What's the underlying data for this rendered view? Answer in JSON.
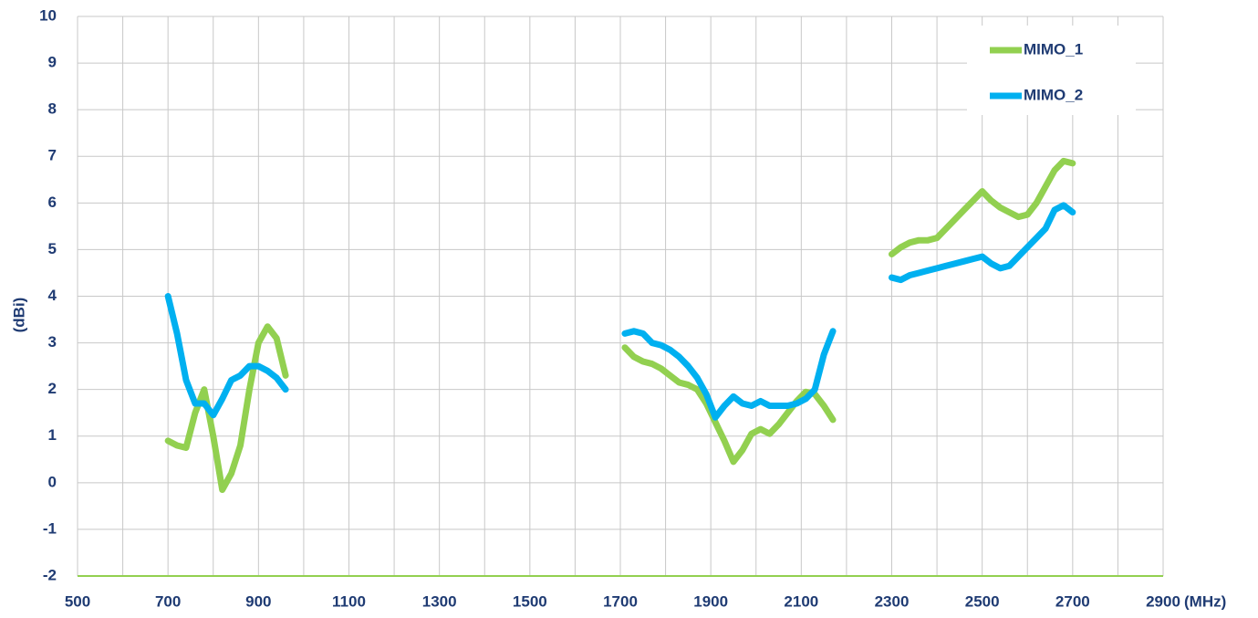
{
  "chart_data": {
    "type": "line",
    "x_label": "(MHz)",
    "y_label": "(dBi)",
    "x": [
      700,
      720,
      740,
      760,
      780,
      800,
      820,
      840,
      860,
      880,
      900,
      920,
      940,
      960,
      null,
      1710,
      1730,
      1750,
      1770,
      1790,
      1810,
      1830,
      1850,
      1870,
      1890,
      1910,
      1930,
      1950,
      1970,
      1990,
      2010,
      2030,
      2050,
      2070,
      2090,
      2110,
      2130,
      2150,
      2170,
      null,
      2300,
      2320,
      2340,
      2360,
      2380,
      2400,
      2420,
      2440,
      2460,
      2480,
      2500,
      2520,
      2540,
      2560,
      2580,
      2600,
      2620,
      2640,
      2660,
      2680,
      2700
    ],
    "series": [
      {
        "name": "MIMO_1",
        "color": "#92d050",
        "values": [
          0.9,
          0.8,
          0.75,
          1.5,
          2.0,
          1.0,
          -0.15,
          0.2,
          0.8,
          2.0,
          3.0,
          3.35,
          3.1,
          2.3,
          null,
          2.9,
          2.7,
          2.6,
          2.55,
          2.45,
          2.3,
          2.15,
          2.1,
          2.0,
          1.7,
          1.3,
          0.9,
          0.45,
          0.7,
          1.05,
          1.15,
          1.05,
          1.25,
          1.5,
          1.75,
          1.95,
          1.9,
          1.65,
          1.35,
          null,
          4.9,
          5.05,
          5.15,
          5.2,
          5.2,
          5.25,
          5.45,
          5.65,
          5.85,
          6.05,
          6.25,
          6.05,
          5.9,
          5.8,
          5.7,
          5.75,
          6.0,
          6.35,
          6.7,
          6.9,
          6.85
        ]
      },
      {
        "name": "MIMO_2",
        "color": "#00b0f0",
        "values": [
          4.0,
          3.2,
          2.2,
          1.7,
          1.7,
          1.45,
          1.8,
          2.2,
          2.3,
          2.5,
          2.5,
          2.4,
          2.25,
          2.0,
          null,
          3.2,
          3.25,
          3.2,
          3.0,
          2.95,
          2.85,
          2.7,
          2.5,
          2.25,
          1.9,
          1.4,
          1.65,
          1.85,
          1.7,
          1.65,
          1.75,
          1.65,
          1.65,
          1.65,
          1.7,
          1.8,
          2.0,
          2.75,
          3.25,
          null,
          4.4,
          4.35,
          4.45,
          4.5,
          4.55,
          4.6,
          4.65,
          4.7,
          4.75,
          4.8,
          4.85,
          4.7,
          4.6,
          4.65,
          4.85,
          5.05,
          5.25,
          5.45,
          5.85,
          5.95,
          5.8
        ]
      }
    ],
    "xlim": [
      500,
      2900
    ],
    "xticks": [
      500,
      700,
      900,
      1100,
      1300,
      1500,
      1700,
      1900,
      2100,
      2300,
      2500,
      2700,
      2900
    ],
    "xgrid": [
      500,
      600,
      700,
      800,
      900,
      1000,
      1100,
      1200,
      1300,
      1400,
      1500,
      1600,
      1700,
      1800,
      1900,
      2000,
      2100,
      2200,
      2300,
      2400,
      2500,
      2600,
      2700,
      2800,
      2900
    ],
    "ylim": [
      -2,
      10
    ],
    "yticks": [
      -2,
      -1,
      0,
      1,
      2,
      3,
      4,
      5,
      6,
      7,
      8,
      9,
      10
    ],
    "grid": true,
    "legend": "top-right"
  }
}
